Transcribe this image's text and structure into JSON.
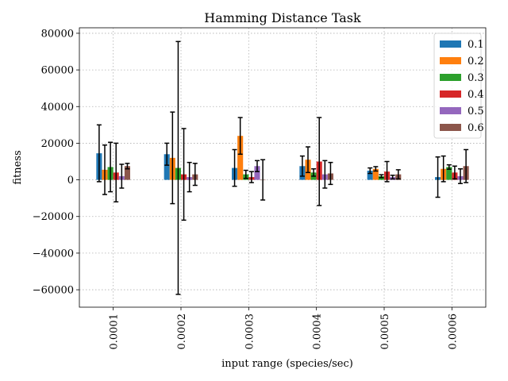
{
  "chart_data": {
    "type": "bar",
    "title": "Hamming Distance Task",
    "xlabel": "input range (species/sec)",
    "ylabel": "fitness",
    "categories": [
      "0.0001",
      "0.0002",
      "0.0003",
      "0.0004",
      "0.0005",
      "0.0006"
    ],
    "ylim": [
      -69500,
      83000
    ],
    "yticks": [
      -60000,
      -40000,
      -20000,
      0,
      20000,
      40000,
      60000,
      80000
    ],
    "ytick_labels": [
      "−60000",
      "−40000",
      "−20000",
      "0",
      "20000",
      "40000",
      "60000",
      "80000"
    ],
    "grid": true,
    "legend_position": "top-right",
    "series": [
      {
        "name": "0.1",
        "color": "#1f77b4",
        "values": [
          14500,
          14000,
          6500,
          7500,
          5000,
          1500
        ],
        "errors": [
          15500,
          6000,
          10000,
          5500,
          1500,
          11000
        ]
      },
      {
        "name": "0.2",
        "color": "#ff7f0e",
        "values": [
          5500,
          12000,
          24000,
          11000,
          6000,
          6000
        ],
        "errors": [
          13500,
          25000,
          10000,
          7000,
          1200,
          7000
        ]
      },
      {
        "name": "0.3",
        "color": "#2ca02c",
        "values": [
          7000,
          6500,
          3000,
          4000,
          2000,
          7000
        ],
        "errors": [
          13500,
          69000,
          2200,
          2000,
          800,
          1200
        ]
      },
      {
        "name": "0.4",
        "color": "#d62728",
        "values": [
          4000,
          3000,
          1500,
          10000,
          4500,
          4000
        ],
        "errors": [
          16000,
          25000,
          3000,
          24000,
          5500,
          3500
        ]
      },
      {
        "name": "0.5",
        "color": "#9467bd",
        "values": [
          2000,
          1500,
          7500,
          3000,
          1500,
          2000
        ],
        "errors": [
          6500,
          8000,
          3000,
          7500,
          1000,
          4000
        ]
      },
      {
        "name": "0.6",
        "color": "#8c564b",
        "values": [
          7500,
          3000,
          0,
          3500,
          3000,
          7500
        ],
        "errors": [
          1500,
          6000,
          11000,
          6000,
          2500,
          9000
        ]
      }
    ]
  }
}
